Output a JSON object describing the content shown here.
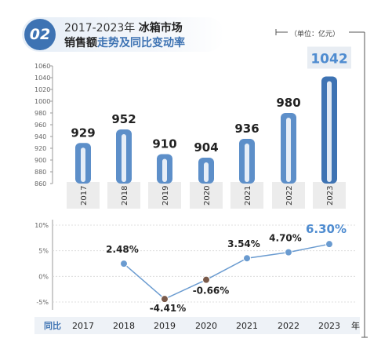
{
  "header": {
    "badge": "02",
    "title_line1_a": "2017-2023年",
    "title_line1_b": "冰箱市场",
    "title_line2_a": "销售额",
    "title_line2_b": "走势及同比变动率"
  },
  "unit_label": "（单位：亿元）",
  "chart_data": [
    {
      "type": "bar",
      "categories": [
        "2017",
        "2018",
        "2019",
        "2020",
        "2021",
        "2022",
        "2023"
      ],
      "values": [
        929,
        952,
        910,
        904,
        936,
        980,
        1042
      ],
      "ylim": [
        860,
        1060
      ],
      "yticks": [
        "860",
        "880",
        "900",
        "920",
        "940",
        "960",
        "980",
        "1000",
        "1020",
        "1040",
        "1060"
      ],
      "ylabel": "",
      "xlabel": ""
    },
    {
      "type": "line",
      "row_label": "同比",
      "x": [
        "2017",
        "2018",
        "2019",
        "2020",
        "2021",
        "2022",
        "2023"
      ],
      "x_unit": "年",
      "values": [
        null,
        2.48,
        -4.41,
        -0.66,
        3.54,
        4.7,
        6.3
      ],
      "labels": [
        "",
        "2.48%",
        "-4.41%",
        "-0.66%",
        "3.54%",
        "4.70%",
        "6.30%"
      ],
      "ylim": [
        -5,
        10
      ],
      "yticks": [
        "10%",
        "5%",
        "0%",
        "-5%"
      ]
    }
  ],
  "colors": {
    "bar": "#5d8fc9",
    "bar_dark": "#3e73b3",
    "line": "#6a9bd0",
    "neg_point": "#7a5a4a",
    "highlight": "#4f8cd0"
  }
}
